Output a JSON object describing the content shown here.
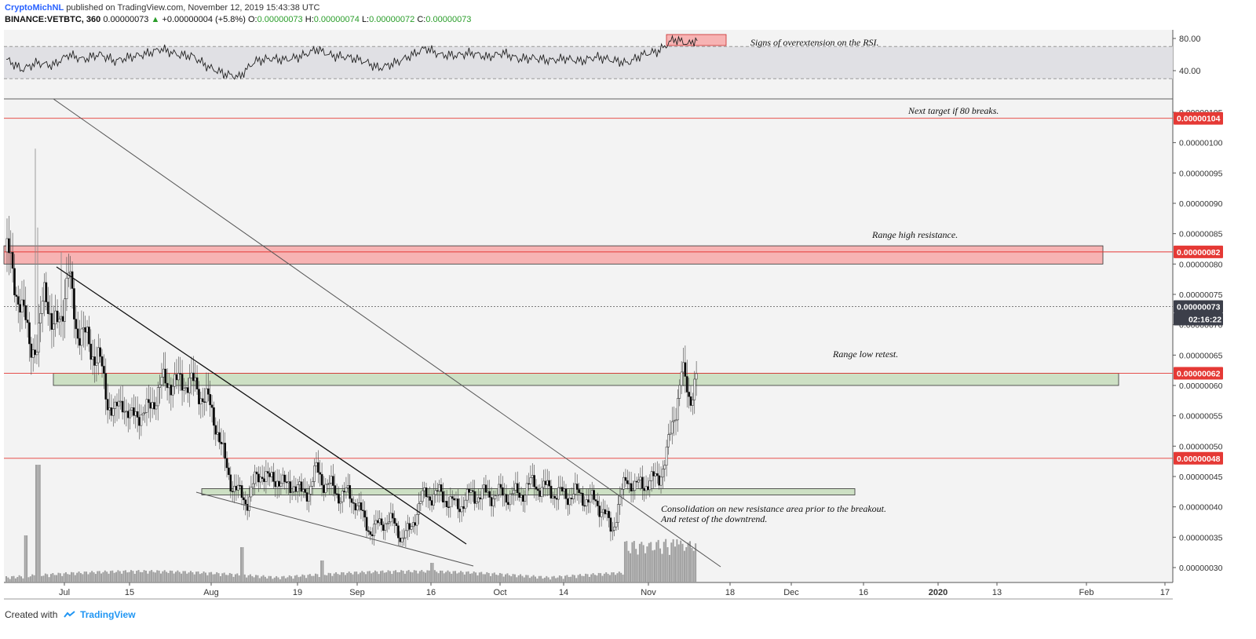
{
  "header": {
    "author": "CryptoMichNL",
    "published_text": "published on TradingView.com, November 12, 2019 15:43:38 UTC",
    "symbol": "BINANCE:VETBTC, 360",
    "price": "0.00000073",
    "change": "+0.00000004 (+5.8%)",
    "open_label": "O:",
    "open": "0.00000073",
    "high_label": "H:",
    "high": "0.00000074",
    "low_label": "L:",
    "low": "0.00000072",
    "close_label": "C:",
    "close": "0.00000073"
  },
  "footer": {
    "created_with": "Created with",
    "brand": "TradingView"
  },
  "colors": {
    "resistance_zone": "#f7b3b3",
    "support_zone": "#cde0c4",
    "level_line": "#e53935",
    "price_tag": "#e53935",
    "current_tag": "#3c3f4a",
    "candle_up": "#ffffff",
    "candle_down": "#000000",
    "rsi_band": "#e0e0e4"
  },
  "chart_data": [
    {
      "type": "line",
      "name": "RSI",
      "ylim": [
        20,
        90
      ],
      "y_ticks": [
        "80.00",
        "40.00"
      ],
      "band": [
        30,
        70
      ],
      "x": [
        0,
        20,
        40,
        60,
        80,
        100,
        120,
        140,
        160,
        180,
        200,
        220,
        240,
        260,
        280,
        300,
        320,
        340,
        360,
        380,
        400,
        420,
        440,
        460,
        480,
        500,
        520,
        540,
        560,
        580,
        600,
        620,
        640,
        660,
        680,
        700,
        720,
        740,
        760,
        780,
        800,
        820,
        840,
        860,
        880,
        900
      ],
      "values": [
        52,
        40,
        50,
        48,
        62,
        55,
        60,
        50,
        55,
        60,
        68,
        62,
        60,
        45,
        35,
        30,
        50,
        55,
        55,
        60,
        68,
        58,
        55,
        50,
        42,
        50,
        60,
        70,
        60,
        58,
        60,
        55,
        62,
        56,
        58,
        54,
        55,
        50,
        55,
        52,
        50,
        62,
        66,
        80,
        72,
        84
      ],
      "annotations": [
        "Signs of overextension on the RSI."
      ]
    },
    {
      "type": "candlestick",
      "name": "VETBTC",
      "ylim": [
        2.7e-07,
        1.06e-06
      ],
      "y_ticks": [
        "0.00000105",
        "0.00000100",
        "0.00000095",
        "0.00000090",
        "0.00000085",
        "0.00000080",
        "0.00000075",
        "0.00000070",
        "0.00000065",
        "0.00000060",
        "0.00000055",
        "0.00000050",
        "0.00000045",
        "0.00000040",
        "0.00000035",
        "0.00000030"
      ],
      "x_ticks": [
        "Jul",
        "15",
        "Aug",
        "19",
        "Sep",
        "16",
        "Oct",
        "14",
        "Nov",
        "18",
        "Dec",
        "16",
        "2020",
        "13",
        "Feb",
        "17"
      ],
      "price_tags": [
        {
          "label": "0.00000104",
          "value": 1.04e-06
        },
        {
          "label": "0.00000082",
          "value": 8.2e-07
        },
        {
          "label": "0.00000073",
          "value": 7.3e-07
        },
        {
          "label": "02:16:22"
        },
        {
          "label": "0.00000062",
          "value": 6.2e-07
        },
        {
          "label": "0.00000048",
          "value": 4.8e-07
        }
      ],
      "zones": [
        {
          "name": "range-high-resistance",
          "from": 8e-07,
          "to": 8.3e-07
        },
        {
          "name": "range-low-retest",
          "from": 6e-07,
          "to": 6.2e-07
        },
        {
          "name": "consolidation-area",
          "from": 4.2e-07,
          "to": 4.3e-07
        }
      ],
      "close_x": [
        0,
        10,
        20,
        30,
        40,
        50,
        60,
        70,
        80,
        90,
        100,
        110,
        120,
        130,
        140,
        150,
        160,
        170,
        180,
        190,
        200,
        210,
        220,
        230,
        240,
        250,
        260,
        270,
        280,
        290,
        300,
        310,
        320,
        330,
        340,
        350,
        360,
        370,
        380,
        390,
        400,
        410,
        420,
        430,
        440,
        450,
        460,
        470,
        480,
        490,
        500,
        510,
        520,
        530,
        540,
        550,
        560,
        570,
        580,
        590,
        600,
        610,
        620,
        630,
        640,
        650,
        660,
        670,
        680,
        690,
        700,
        710,
        720,
        730,
        740,
        750,
        760,
        770,
        780,
        790,
        800,
        810,
        820,
        830,
        840,
        850,
        860,
        870,
        880,
        890,
        900
      ],
      "close": [
        8.2e-07,
        7.8e-07,
        7.2e-07,
        6.8e-07,
        6.5e-07,
        7.8e-07,
        6.8e-07,
        7.2e-07,
        7.8e-07,
        7e-07,
        6.8e-07,
        6.6e-07,
        6.4e-07,
        5.8e-07,
        5.5e-07,
        5.8e-07,
        5.4e-07,
        5.6e-07,
        5.5e-07,
        5.8e-07,
        6e-07,
        6.1e-07,
        6e-07,
        6.1e-07,
        6e-07,
        5.9e-07,
        5.7e-07,
        5.4e-07,
        4.8e-07,
        4.4e-07,
        4.2e-07,
        4.1e-07,
        4.4e-07,
        4.6e-07,
        4.4e-07,
        4.5e-07,
        4.3e-07,
        4.4e-07,
        4.2e-07,
        4.3e-07,
        4.6e-07,
        4.4e-07,
        4.3e-07,
        4.2e-07,
        4.2e-07,
        4.1e-07,
        3.8e-07,
        3.6e-07,
        3.7e-07,
        3.8e-07,
        3.7e-07,
        3.5e-07,
        3.6e-07,
        4e-07,
        4.2e-07,
        4.2e-07,
        4.2e-07,
        4.1e-07,
        4e-07,
        4.1e-07,
        4.2e-07,
        4.2e-07,
        4.2e-07,
        4.2e-07,
        4.2e-07,
        4.2e-07,
        4.2e-07,
        4.3e-07,
        4.4e-07,
        4.3e-07,
        4.3e-07,
        4.2e-07,
        4.2e-07,
        4.2e-07,
        4.2e-07,
        4.1e-07,
        4.1e-07,
        3.9e-07,
        3.6e-07,
        4.1e-07,
        4.5e-07,
        4.3e-07,
        4.4e-07,
        4.4e-07,
        4.5e-07,
        4.8e-07,
        5.5e-07,
        6.2e-07,
        5.8e-07,
        6.2e-07,
        7.3e-07
      ],
      "annotations": [
        "Next target if 80 breaks.",
        "Range high resistance.",
        "Range low retest.",
        "Consolidation on new resistance area prior to the breakout.",
        "And retest of the downtrend."
      ]
    }
  ]
}
